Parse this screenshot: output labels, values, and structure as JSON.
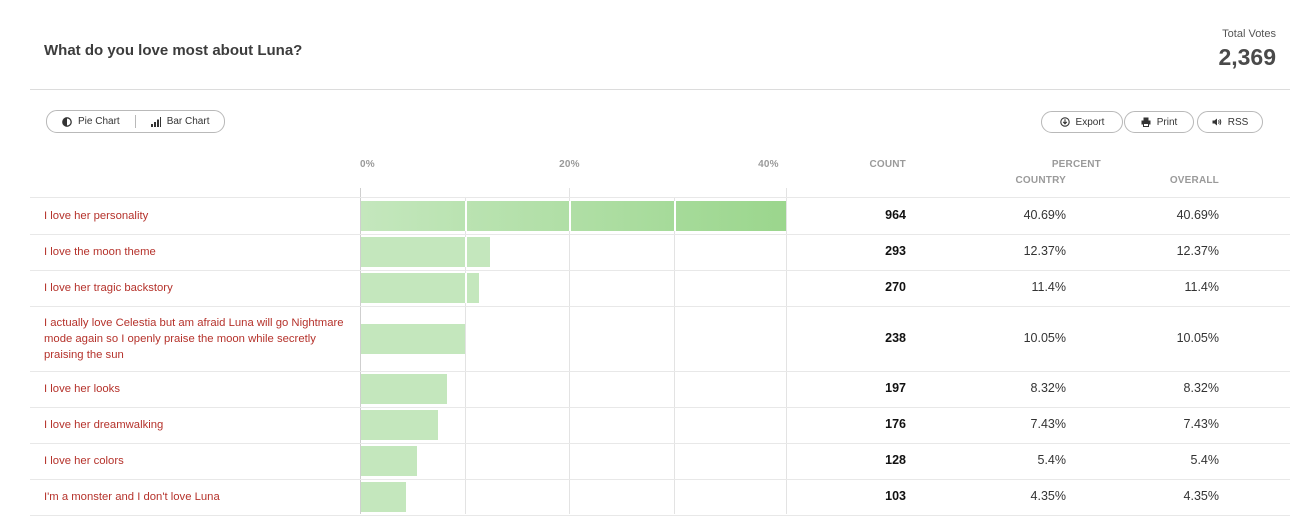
{
  "poll": {
    "title": "What do you love most about Luna?",
    "total_label": "Total Votes",
    "total_value": "2,369"
  },
  "toolbar": {
    "pie_chart_label": "Pie Chart",
    "bar_chart_label": "Bar Chart",
    "export_label": "Export",
    "print_label": "Print",
    "rss_label": "RSS"
  },
  "table": {
    "axis_ticks": [
      "0%",
      "20%",
      "40%"
    ],
    "count_header": "COUNT",
    "percent_header": "PERCENT",
    "country_header": "COUNTRY",
    "overall_header": "OVERALL",
    "rows": [
      {
        "label": "I love her personality",
        "count": "964",
        "country": "40.69%",
        "overall": "40.69%"
      },
      {
        "label": "I love the moon theme",
        "count": "293",
        "country": "12.37%",
        "overall": "12.37%"
      },
      {
        "label": "I love her tragic backstory",
        "count": "270",
        "country": "11.4%",
        "overall": "11.4%"
      },
      {
        "label": "I actually love Celestia but am afraid Luna will go Nightmare mode again so I openly praise the moon while secretly praising the sun",
        "count": "238",
        "country": "10.05%",
        "overall": "10.05%"
      },
      {
        "label": "I love her looks",
        "count": "197",
        "country": "8.32%",
        "overall": "8.32%"
      },
      {
        "label": "I love her dreamwalking",
        "count": "176",
        "country": "7.43%",
        "overall": "7.43%"
      },
      {
        "label": "I love her colors",
        "count": "128",
        "country": "5.4%",
        "overall": "5.4%"
      },
      {
        "label": "I'm a monster and I don't love Luna",
        "count": "103",
        "country": "4.35%",
        "overall": "4.35%"
      }
    ]
  },
  "chart_data": {
    "type": "bar",
    "orientation": "horizontal",
    "categories": [
      "I love her personality",
      "I love the moon theme",
      "I love her tragic backstory",
      "I actually love Celestia but am afraid Luna will go Nightmare mode again so I openly praise the moon while secretly praising the sun",
      "I love her looks",
      "I love her dreamwalking",
      "I love her colors",
      "I'm a monster and I don't love Luna"
    ],
    "values": [
      40.69,
      12.37,
      11.4,
      10.05,
      8.32,
      7.43,
      5.4,
      4.35
    ],
    "xlim": [
      0,
      40.69
    ],
    "tick_values": [
      0,
      20,
      40
    ],
    "bar_color": "#c4e7bd",
    "bar_color_end": "#9bd68d"
  }
}
